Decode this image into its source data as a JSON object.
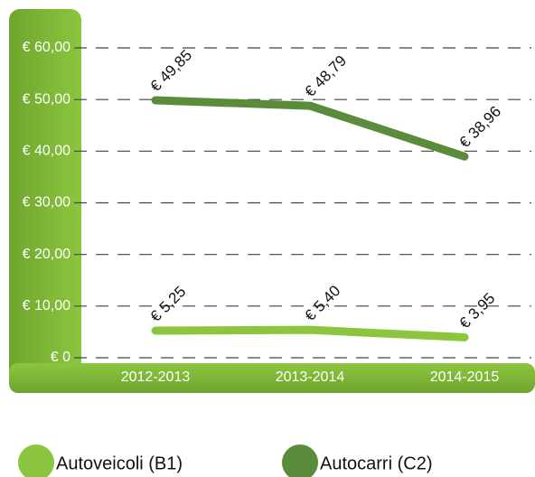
{
  "chart_data": {
    "type": "line",
    "categories": [
      "2012-2013",
      "2013-2014",
      "2014-2015"
    ],
    "series": [
      {
        "name": "Autoveicoli (B1)",
        "color": "#8cc63f",
        "values": [
          5.25,
          5.4,
          3.95
        ],
        "value_labels": [
          "€ 5,25",
          "€ 5,40",
          "€ 3,95"
        ]
      },
      {
        "name": "Autocarri (C2)",
        "color": "#5b8c3c",
        "values": [
          49.85,
          48.79,
          38.96
        ],
        "value_labels": [
          "€ 49,85",
          "€ 48,79",
          "€ 38,96"
        ]
      }
    ],
    "ylim": [
      0,
      60
    ],
    "yticks": [
      {
        "value": 0,
        "label": "€ 0"
      },
      {
        "value": 10,
        "label": "€ 10,00"
      },
      {
        "value": 20,
        "label": "€ 20,00"
      },
      {
        "value": 30,
        "label": "€ 30,00"
      },
      {
        "value": 40,
        "label": "€ 40,00"
      },
      {
        "value": 50,
        "label": "€ 50,00"
      },
      {
        "value": 60,
        "label": "€ 60,00"
      }
    ],
    "grid": true
  }
}
